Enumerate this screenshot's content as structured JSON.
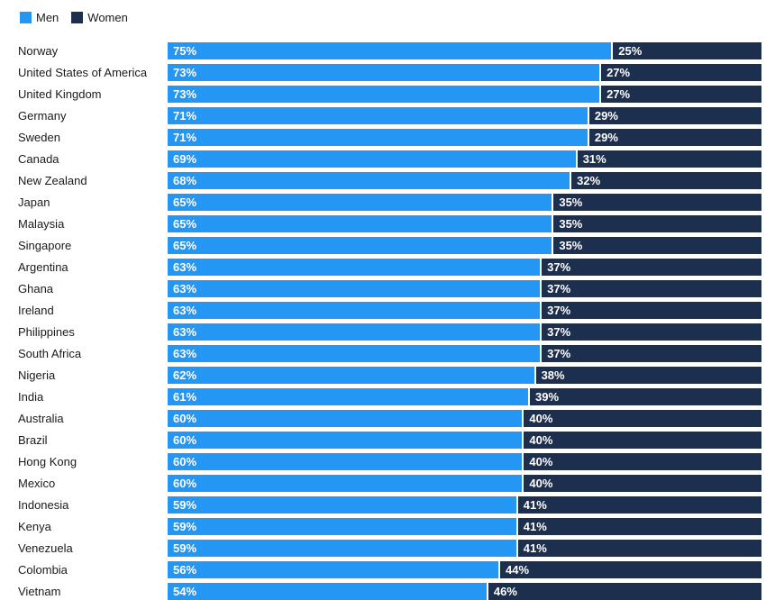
{
  "colors": {
    "men": "#2397F3",
    "women": "#1C2F4E",
    "background": "#FFFFFF",
    "label_text": "#1A1A1A",
    "value_text": "#FFFFFF"
  },
  "legend": {
    "position": "top-left",
    "items": [
      {
        "label": "Men",
        "color": "#2397F3"
      },
      {
        "label": "Women",
        "color": "#1C2F4E"
      }
    ]
  },
  "chart_data": {
    "type": "bar",
    "stacked": true,
    "orientation": "horizontal",
    "xlim": [
      0,
      100
    ],
    "grid": false,
    "legend_position": "top-left",
    "value_suffix": "%",
    "value_labels": "inside-start",
    "categories": [
      "Norway",
      "United States of America",
      "United Kingdom",
      "Germany",
      "Sweden",
      "Canada",
      "New Zealand",
      "Japan",
      "Malaysia",
      "Singapore",
      "Argentina",
      "Ghana",
      "Ireland",
      "Philippines",
      "South Africa",
      "Nigeria",
      "India",
      "Australia",
      "Brazil",
      "Hong Kong",
      "Mexico",
      "Indonesia",
      "Kenya",
      "Venezuela",
      "Colombia",
      "Vietnam"
    ],
    "series": [
      {
        "name": "Men",
        "color": "#2397F3",
        "values": [
          75,
          73,
          73,
          71,
          71,
          69,
          68,
          65,
          65,
          65,
          63,
          63,
          63,
          63,
          63,
          62,
          61,
          60,
          60,
          60,
          60,
          59,
          59,
          59,
          56,
          54
        ]
      },
      {
        "name": "Women",
        "color": "#1C2F4E",
        "values": [
          25,
          27,
          27,
          29,
          29,
          31,
          32,
          35,
          35,
          35,
          37,
          37,
          37,
          37,
          37,
          38,
          39,
          40,
          40,
          40,
          40,
          41,
          41,
          41,
          44,
          46
        ]
      }
    ]
  }
}
